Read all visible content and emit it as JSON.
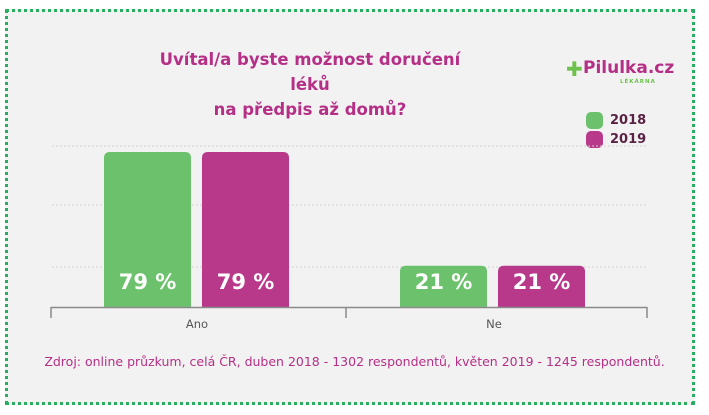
{
  "title_line1": "Uvítal/a byste možnost doručení léků",
  "title_line2": "na předpis až domů?",
  "logo": {
    "name": "Pilulka.cz",
    "sub": "LÉKÁRNA",
    "icon": "plus-icon"
  },
  "colors": {
    "green": "#6cc26c",
    "magenta": "#b8388a",
    "title": "#b52f86"
  },
  "source": "Zdroj: online průzkum, celá ČR, duben 2018 - 1302 respondentů, květen 2019 - 1245 respondentů.",
  "chart_data": {
    "type": "bar",
    "categories": [
      "Ano",
      "Ne"
    ],
    "series": [
      {
        "name": "2018",
        "values": [
          79,
          21
        ],
        "labels": [
          "79 %",
          "21 %"
        ],
        "color": "#6cc26c"
      },
      {
        "name": "2019",
        "values": [
          79,
          21
        ],
        "labels": [
          "79 %",
          "21 %"
        ],
        "color": "#b8388a"
      }
    ],
    "ylim": [
      0,
      79
    ],
    "grid": true,
    "legend": "top-right",
    "title": "Uvítal/a byste možnost doručení léků na předpis až domů?"
  }
}
